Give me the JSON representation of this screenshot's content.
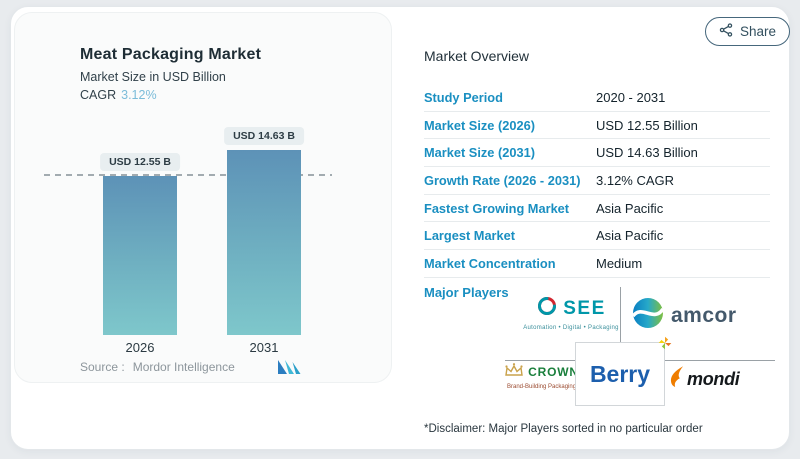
{
  "colors": {
    "label_blue": "#1a8fc1",
    "cagr_blue": "#7bbcd9",
    "bar_top": "#5d92b7",
    "bar_bottom": "#7ec7cb",
    "see_teal": "#0097a9",
    "crown_green": "#1a7f3c",
    "mondi_orange": "#ef7d00",
    "berry_blue": "#1d5fad"
  },
  "share": {
    "label": "Share"
  },
  "chart": {
    "title": "Meat Packaging Market",
    "subtitle": "Market Size in USD Billion",
    "cagr_label": "CAGR",
    "cagr_value": "3.12%",
    "source_label": "Source :",
    "source_value": "Mordor Intelligence"
  },
  "chart_data": {
    "type": "bar",
    "title": "Meat Packaging Market",
    "ylabel": "Market Size in USD Billion",
    "categories": [
      "2026",
      "2031"
    ],
    "values": [
      12.55,
      14.63
    ],
    "bar_labels": [
      "USD 12.55 B",
      "USD 14.63 B"
    ],
    "cagr": "3.12%",
    "reference_line": 12.55,
    "ylim": [
      0,
      14.63
    ],
    "grid": false,
    "legend": false
  },
  "overview": {
    "heading": "Market Overview",
    "rows": [
      {
        "label": "Study Period",
        "value": "2020 - 2031"
      },
      {
        "label": "Market Size (2026)",
        "value": "USD 12.55 Billion"
      },
      {
        "label": "Market Size (2031)",
        "value": "USD 14.63 Billion"
      },
      {
        "label": "Growth Rate (2026 - 2031)",
        "value": "3.12% CAGR"
      },
      {
        "label": "Fastest Growing Market",
        "value": "Asia Pacific"
      },
      {
        "label": "Largest Market",
        "value": "Asia Pacific"
      },
      {
        "label": "Market Concentration",
        "value": "Medium"
      }
    ],
    "major_players_label": "Major Players",
    "players": [
      {
        "name": "SEE",
        "tagline": "Automation • Digital • Packaging"
      },
      {
        "name": "amcor"
      },
      {
        "name": "CROWN",
        "tagline": "Brand-Building Packaging™"
      },
      {
        "name": "Berry"
      },
      {
        "name": "mondi"
      }
    ],
    "disclaimer": "*Disclaimer: Major Players sorted in no particular order"
  }
}
